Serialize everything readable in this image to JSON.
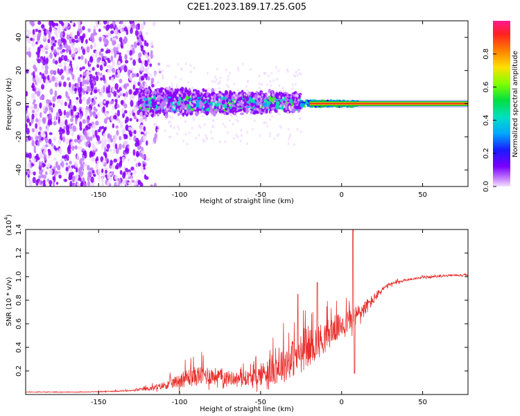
{
  "title": "C2E1.2023.189.17.25.G05",
  "chart_data": [
    {
      "type": "heatmap",
      "xlabel": "Height of straight line (km)",
      "ylabel": "Frequency (Hz)",
      "xlim": [
        -195,
        78
      ],
      "ylim": [
        -50,
        50
      ],
      "xticks": [
        -150,
        -100,
        -50,
        0,
        50
      ],
      "yticks": [
        -40,
        -20,
        0,
        20,
        40
      ],
      "colorbar": {
        "label": "Normalized spectral amplitude",
        "range": [
          0,
          1
        ],
        "ticks": [
          0.0,
          0.2,
          0.4,
          0.6,
          0.8
        ]
      },
      "description_points": {
        "noise_region_x": [
          -195,
          -120
        ],
        "spread_region_x": [
          -125,
          -25
        ],
        "narrowing_region_x": [
          -25,
          10
        ],
        "carrier_line_y": 0,
        "carrier_amplitude": 0.95
      }
    },
    {
      "type": "line",
      "xlabel": "Height of straight line (km)",
      "ylabel": "SNR (10 * v/v)",
      "yscale_note": "(x10",
      "yscale_exp": "4",
      "xlim": [
        -195,
        78
      ],
      "ylim": [
        0,
        1.4
      ],
      "xticks": [
        -150,
        -100,
        -50,
        0,
        50
      ],
      "yticks": [
        0.2,
        0.4,
        0.6,
        0.8,
        1.0,
        1.2,
        1.4
      ],
      "color": "#e8302d",
      "envelope": {
        "x": [
          -195,
          -160,
          -130,
          -115,
          -105,
          -95,
          -85,
          -75,
          -65,
          -55,
          -45,
          -35,
          -25,
          -15,
          -10,
          -5,
          0,
          5,
          10,
          15,
          20,
          25,
          30,
          40,
          50,
          60,
          70,
          78
        ],
        "base": [
          0.02,
          0.02,
          0.03,
          0.05,
          0.08,
          0.12,
          0.14,
          0.13,
          0.12,
          0.12,
          0.16,
          0.22,
          0.3,
          0.4,
          0.45,
          0.52,
          0.55,
          0.6,
          0.65,
          0.72,
          0.8,
          0.88,
          0.93,
          0.97,
          0.99,
          1.0,
          1.01,
          1.01
        ],
        "spread": [
          0.005,
          0.005,
          0.01,
          0.04,
          0.08,
          0.14,
          0.16,
          0.12,
          0.1,
          0.12,
          0.22,
          0.3,
          0.3,
          0.26,
          0.25,
          0.22,
          0.18,
          0.18,
          0.16,
          0.12,
          0.08,
          0.05,
          0.03,
          0.02,
          0.015,
          0.015,
          0.015,
          0.015
        ]
      },
      "peaks": [
        {
          "x": 7,
          "y": 1.4
        },
        {
          "x": -27,
          "y": 0.85
        },
        {
          "x": -15,
          "y": 0.95
        },
        {
          "x": 8,
          "y": 0.18
        }
      ]
    }
  ],
  "colors": {
    "axis": "#000000",
    "line": "#e8302d"
  }
}
